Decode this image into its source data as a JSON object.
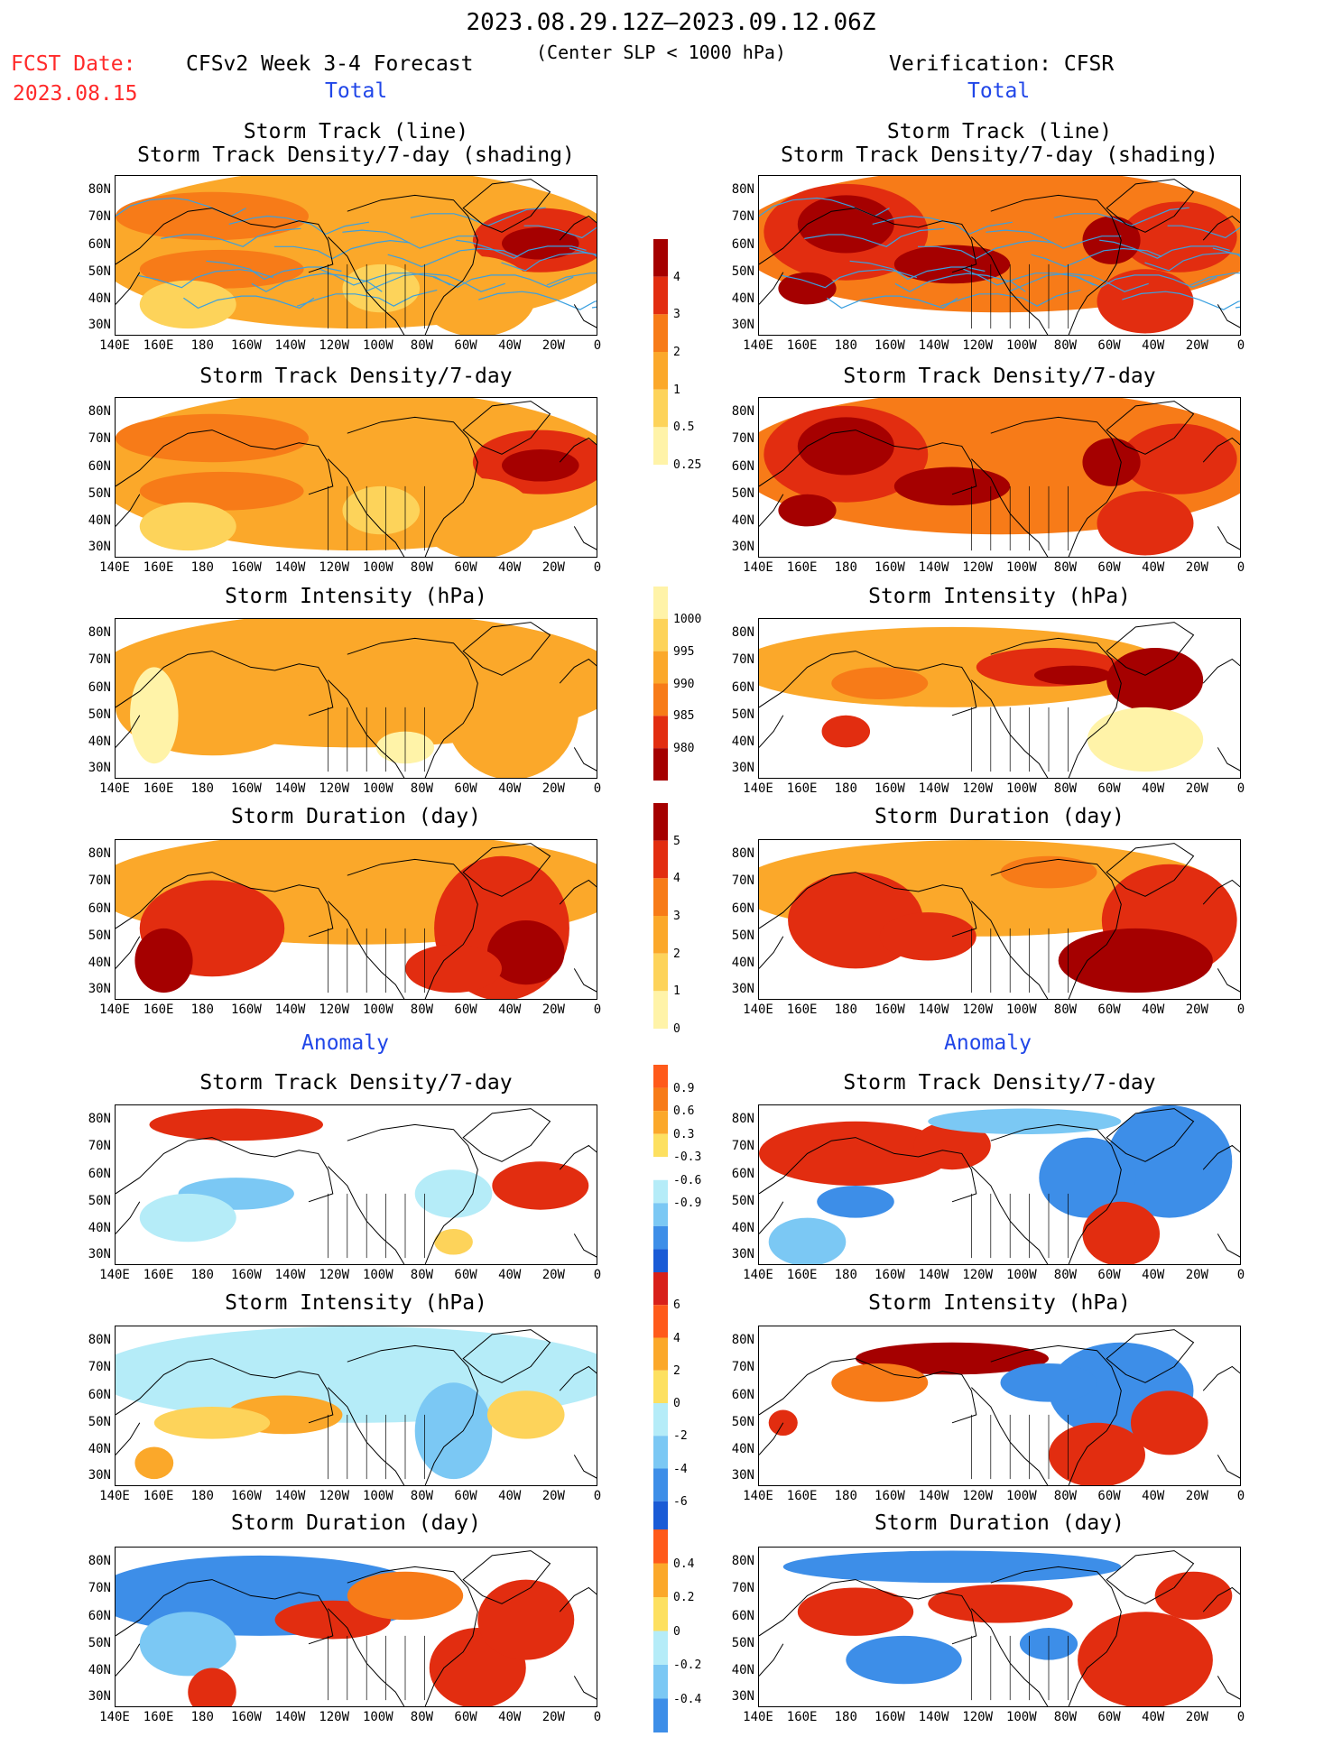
{
  "header": {
    "date_range": "2023.08.29.12Z–2023.09.12.06Z",
    "subtitle": "(Center SLP < 1000 hPa)",
    "fcst_label": "FCST Date:",
    "fcst_date": "2023.08.15",
    "forecast_title": "CFSv2 Week 3-4 Forecast",
    "verification_title": "Verification: CFSR"
  },
  "sections": {
    "total_left": "Total",
    "total_right": "Total",
    "anomaly_left": "Anomaly",
    "anomaly_right": "Anomaly"
  },
  "panel_titles": {
    "track_line": "Storm Track (line)",
    "track_shading": "Storm Track Density/7-day (shading)",
    "density": "Storm Track Density/7-day",
    "intensity": "Storm Intensity (hPa)",
    "duration": "Storm Duration (day)"
  },
  "axes": {
    "lat_ticks": [
      "80N",
      "70N",
      "60N",
      "50N",
      "40N",
      "30N"
    ],
    "lon_ticks": [
      "140E",
      "160E",
      "180",
      "160W",
      "140W",
      "120W",
      "100W",
      "80W",
      "60W",
      "40W",
      "20W",
      "0"
    ]
  },
  "colorbars": {
    "density": {
      "labels": [
        "4",
        "3",
        "2",
        "1",
        "0.5",
        "0.25"
      ],
      "colors": [
        "#a50000",
        "#e22d10",
        "#f77b18",
        "#fba82a",
        "#fdd35a",
        "#fff3a8"
      ]
    },
    "intensity": {
      "labels": [
        "1000",
        "995",
        "990",
        "985",
        "980"
      ],
      "colors": [
        "#fff3a8",
        "#fdd35a",
        "#fba82a",
        "#f77b18",
        "#e22d10",
        "#a50000"
      ]
    },
    "duration": {
      "labels": [
        "5",
        "4",
        "3",
        "2",
        "1",
        "0"
      ],
      "colors": [
        "#a50000",
        "#e22d10",
        "#f77b18",
        "#fba82a",
        "#fdd35a",
        "#fff3a8"
      ]
    },
    "anom_density": {
      "labels": [
        "0.9",
        "0.6",
        "0.3",
        "-0.3",
        "-0.6",
        "-0.9"
      ],
      "colors": [
        "#ff5a1a",
        "#f77b18",
        "#fba82a",
        "#fde060",
        "#ffffff",
        "#b5ecf8",
        "#7bc8f4",
        "#3d8ee8",
        "#1a5bd6"
      ]
    },
    "anom_intensity": {
      "labels": [
        "6",
        "4",
        "2",
        "0",
        "-2",
        "-4",
        "-6"
      ],
      "colors": [
        "#d8201a",
        "#ff5a1a",
        "#fba82a",
        "#fde060",
        "#b5ecf8",
        "#7bc8f4",
        "#3d8ee8",
        "#1a5bd6"
      ]
    },
    "anom_duration": {
      "labels": [
        "0.4",
        "0.2",
        "0",
        "-0.2",
        "-0.4"
      ],
      "colors": [
        "#ff5a1a",
        "#fba82a",
        "#fde060",
        "#b5ecf8",
        "#7bc8f4",
        "#3d8ee8"
      ]
    }
  },
  "palette": {
    "pale": "#fff3a8",
    "yellow": "#fdd35a",
    "lorange": "#fba82a",
    "orange": "#f77b18",
    "red": "#e22d10",
    "dred": "#a50000",
    "lblue": "#b5ecf8",
    "mblue": "#7bc8f4",
    "blue": "#3d8ee8",
    "dblue": "#1a5bd6",
    "track": "#3aa0e0"
  }
}
